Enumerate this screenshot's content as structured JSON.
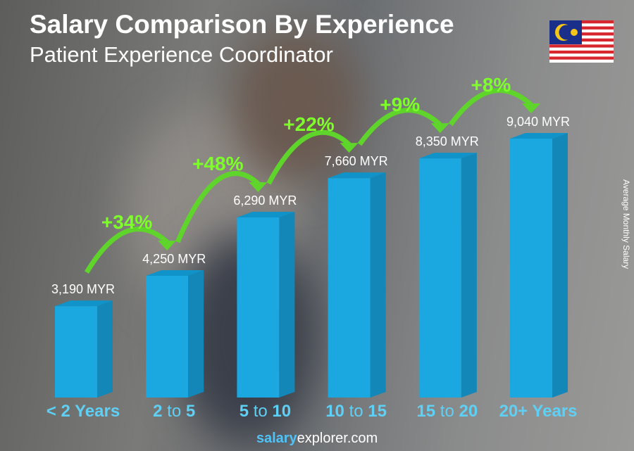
{
  "chart_data": {
    "type": "bar",
    "title": "Salary Comparison By Experience",
    "subtitle": "Patient Experience Coordinator",
    "ylabel": "Average Monthly Salary",
    "categories": [
      {
        "parts": [
          {
            "t": "< 2 Years",
            "b": true
          }
        ]
      },
      {
        "parts": [
          {
            "t": "2",
            "b": true
          },
          {
            "t": " to ",
            "b": false
          },
          {
            "t": "5",
            "b": true
          }
        ]
      },
      {
        "parts": [
          {
            "t": "5",
            "b": true
          },
          {
            "t": " to ",
            "b": false
          },
          {
            "t": "10",
            "b": true
          }
        ]
      },
      {
        "parts": [
          {
            "t": "10",
            "b": true
          },
          {
            "t": " to ",
            "b": false
          },
          {
            "t": "15",
            "b": true
          }
        ]
      },
      {
        "parts": [
          {
            "t": "15",
            "b": true
          },
          {
            "t": " to ",
            "b": false
          },
          {
            "t": "20",
            "b": true
          }
        ]
      },
      {
        "parts": [
          {
            "t": "20+ Years",
            "b": true
          }
        ]
      }
    ],
    "values": [
      3190,
      4250,
      6290,
      7660,
      8350,
      9040
    ],
    "value_labels": [
      "3,190 MYR",
      "4,250 MYR",
      "6,290 MYR",
      "7,660 MYR",
      "8,350 MYR",
      "9,040 MYR"
    ],
    "changes": [
      "+34%",
      "+48%",
      "+22%",
      "+9%",
      "+8%"
    ],
    "ylim": [
      0,
      9040
    ],
    "colors": {
      "bar_front": "#1ba8e0",
      "bar_side": "#1287b8",
      "bar_top": "#0f93c8",
      "change": "#7dff2a",
      "category": "#5fd0f5"
    }
  },
  "flag": "malaysia-flag",
  "footer": {
    "bold": "salary",
    "rest": "explorer.com"
  }
}
